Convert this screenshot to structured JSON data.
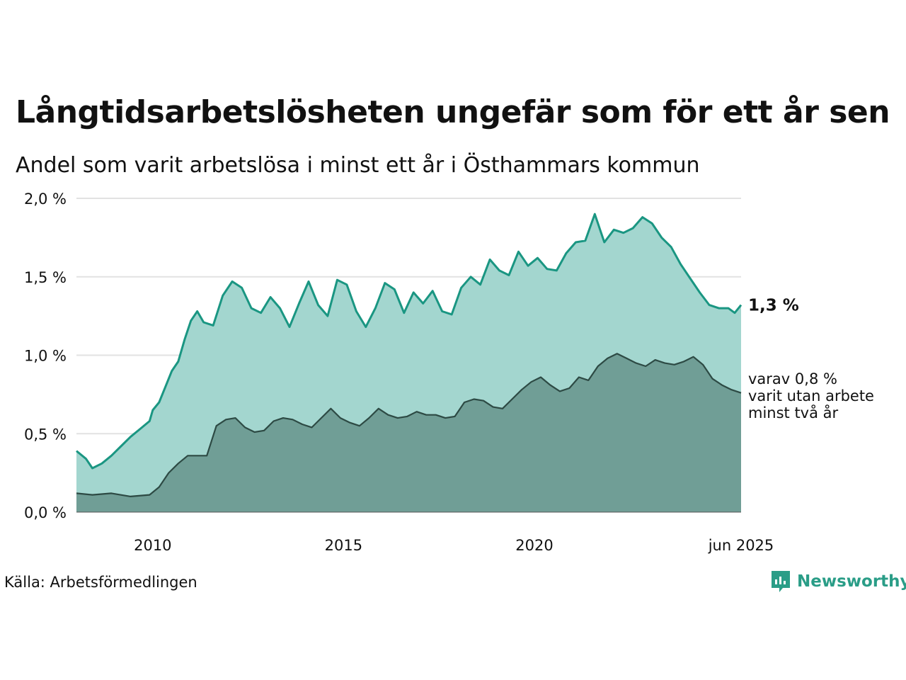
{
  "title": "Långtidsarbetslösheten ungefär som för ett år sen",
  "subtitle": "Andel som varit arbetslösa i minst ett år i Östhammars kommun",
  "source": "Källa: Arbetsförmedlingen",
  "brand": {
    "name": "Newsworthy",
    "icon": "newsworthy-logo-icon",
    "color": "#2a9d87"
  },
  "chart_data": {
    "type": "area",
    "x_start": "2008-01",
    "x_end": "2025-06",
    "x_ticks": [
      "2010",
      "2015",
      "2020",
      "jun 2025"
    ],
    "y_ticks": [
      "0,0 %",
      "0,5 %",
      "1,0 %",
      "1,5 %",
      "2,0 %"
    ],
    "ylim": [
      0,
      2.0
    ],
    "grid": true,
    "series": [
      {
        "color": "#1a9682",
        "fill": "#a3d6cf",
        "end_label": "1,3 %",
        "points": [
          [
            "2008-01",
            0.39
          ],
          [
            "2008-04",
            0.34
          ],
          [
            "2008-06",
            0.28
          ],
          [
            "2008-09",
            0.31
          ],
          [
            "2008-12",
            0.36
          ],
          [
            "2009-03",
            0.42
          ],
          [
            "2009-06",
            0.48
          ],
          [
            "2009-09",
            0.53
          ],
          [
            "2009-12",
            0.58
          ],
          [
            "2010-01",
            0.65
          ],
          [
            "2010-03",
            0.7
          ],
          [
            "2010-05",
            0.8
          ],
          [
            "2010-07",
            0.9
          ],
          [
            "2010-09",
            0.96
          ],
          [
            "2010-11",
            1.1
          ],
          [
            "2011-01",
            1.22
          ],
          [
            "2011-03",
            1.28
          ],
          [
            "2011-05",
            1.21
          ],
          [
            "2011-08",
            1.19
          ],
          [
            "2011-11",
            1.38
          ],
          [
            "2012-02",
            1.47
          ],
          [
            "2012-05",
            1.43
          ],
          [
            "2012-08",
            1.3
          ],
          [
            "2012-11",
            1.27
          ],
          [
            "2013-02",
            1.37
          ],
          [
            "2013-05",
            1.3
          ],
          [
            "2013-08",
            1.18
          ],
          [
            "2013-11",
            1.33
          ],
          [
            "2014-02",
            1.47
          ],
          [
            "2014-05",
            1.32
          ],
          [
            "2014-08",
            1.25
          ],
          [
            "2014-11",
            1.48
          ],
          [
            "2015-02",
            1.45
          ],
          [
            "2015-05",
            1.28
          ],
          [
            "2015-08",
            1.18
          ],
          [
            "2015-11",
            1.3
          ],
          [
            "2016-02",
            1.46
          ],
          [
            "2016-05",
            1.42
          ],
          [
            "2016-08",
            1.27
          ],
          [
            "2016-11",
            1.4
          ],
          [
            "2017-02",
            1.33
          ],
          [
            "2017-05",
            1.41
          ],
          [
            "2017-08",
            1.28
          ],
          [
            "2017-11",
            1.26
          ],
          [
            "2018-02",
            1.43
          ],
          [
            "2018-05",
            1.5
          ],
          [
            "2018-08",
            1.45
          ],
          [
            "2018-11",
            1.61
          ],
          [
            "2019-02",
            1.54
          ],
          [
            "2019-05",
            1.51
          ],
          [
            "2019-08",
            1.66
          ],
          [
            "2019-11",
            1.57
          ],
          [
            "2020-02",
            1.62
          ],
          [
            "2020-05",
            1.55
          ],
          [
            "2020-08",
            1.54
          ],
          [
            "2020-11",
            1.65
          ],
          [
            "2021-02",
            1.72
          ],
          [
            "2021-05",
            1.73
          ],
          [
            "2021-08",
            1.9
          ],
          [
            "2021-11",
            1.72
          ],
          [
            "2022-02",
            1.8
          ],
          [
            "2022-05",
            1.78
          ],
          [
            "2022-08",
            1.81
          ],
          [
            "2022-11",
            1.88
          ],
          [
            "2023-02",
            1.84
          ],
          [
            "2023-05",
            1.75
          ],
          [
            "2023-08",
            1.69
          ],
          [
            "2023-11",
            1.58
          ],
          [
            "2024-02",
            1.49
          ],
          [
            "2024-05",
            1.4
          ],
          [
            "2024-08",
            1.32
          ],
          [
            "2024-11",
            1.3
          ],
          [
            "2025-02",
            1.3
          ],
          [
            "2025-04",
            1.27
          ],
          [
            "2025-06",
            1.32
          ]
        ]
      },
      {
        "color": "#2d4a44",
        "fill": "#709e96",
        "end_label": "varav 0,8 %\nvarit utan arbete\nminst två år",
        "points": [
          [
            "2008-01",
            0.12
          ],
          [
            "2008-06",
            0.11
          ],
          [
            "2008-12",
            0.12
          ],
          [
            "2009-06",
            0.1
          ],
          [
            "2009-12",
            0.11
          ],
          [
            "2010-03",
            0.16
          ],
          [
            "2010-06",
            0.25
          ],
          [
            "2010-09",
            0.31
          ],
          [
            "2010-12",
            0.36
          ],
          [
            "2011-03",
            0.36
          ],
          [
            "2011-06",
            0.36
          ],
          [
            "2011-09",
            0.55
          ],
          [
            "2011-12",
            0.59
          ],
          [
            "2012-03",
            0.6
          ],
          [
            "2012-06",
            0.54
          ],
          [
            "2012-09",
            0.51
          ],
          [
            "2012-12",
            0.52
          ],
          [
            "2013-03",
            0.58
          ],
          [
            "2013-06",
            0.6
          ],
          [
            "2013-09",
            0.59
          ],
          [
            "2013-12",
            0.56
          ],
          [
            "2014-03",
            0.54
          ],
          [
            "2014-06",
            0.6
          ],
          [
            "2014-09",
            0.66
          ],
          [
            "2014-12",
            0.6
          ],
          [
            "2015-03",
            0.57
          ],
          [
            "2015-06",
            0.55
          ],
          [
            "2015-09",
            0.6
          ],
          [
            "2015-12",
            0.66
          ],
          [
            "2016-03",
            0.62
          ],
          [
            "2016-06",
            0.6
          ],
          [
            "2016-09",
            0.61
          ],
          [
            "2016-12",
            0.64
          ],
          [
            "2017-03",
            0.62
          ],
          [
            "2017-06",
            0.62
          ],
          [
            "2017-09",
            0.6
          ],
          [
            "2017-12",
            0.61
          ],
          [
            "2018-03",
            0.7
          ],
          [
            "2018-06",
            0.72
          ],
          [
            "2018-09",
            0.71
          ],
          [
            "2018-12",
            0.67
          ],
          [
            "2019-03",
            0.66
          ],
          [
            "2019-06",
            0.72
          ],
          [
            "2019-09",
            0.78
          ],
          [
            "2019-12",
            0.83
          ],
          [
            "2020-03",
            0.86
          ],
          [
            "2020-06",
            0.81
          ],
          [
            "2020-09",
            0.77
          ],
          [
            "2020-12",
            0.79
          ],
          [
            "2021-03",
            0.86
          ],
          [
            "2021-06",
            0.84
          ],
          [
            "2021-09",
            0.93
          ],
          [
            "2021-12",
            0.98
          ],
          [
            "2022-03",
            1.01
          ],
          [
            "2022-06",
            0.98
          ],
          [
            "2022-09",
            0.95
          ],
          [
            "2022-12",
            0.93
          ],
          [
            "2023-03",
            0.97
          ],
          [
            "2023-06",
            0.95
          ],
          [
            "2023-09",
            0.94
          ],
          [
            "2023-12",
            0.96
          ],
          [
            "2024-03",
            0.99
          ],
          [
            "2024-06",
            0.94
          ],
          [
            "2024-09",
            0.85
          ],
          [
            "2024-12",
            0.81
          ],
          [
            "2025-03",
            0.78
          ],
          [
            "2025-06",
            0.76
          ]
        ]
      }
    ]
  }
}
